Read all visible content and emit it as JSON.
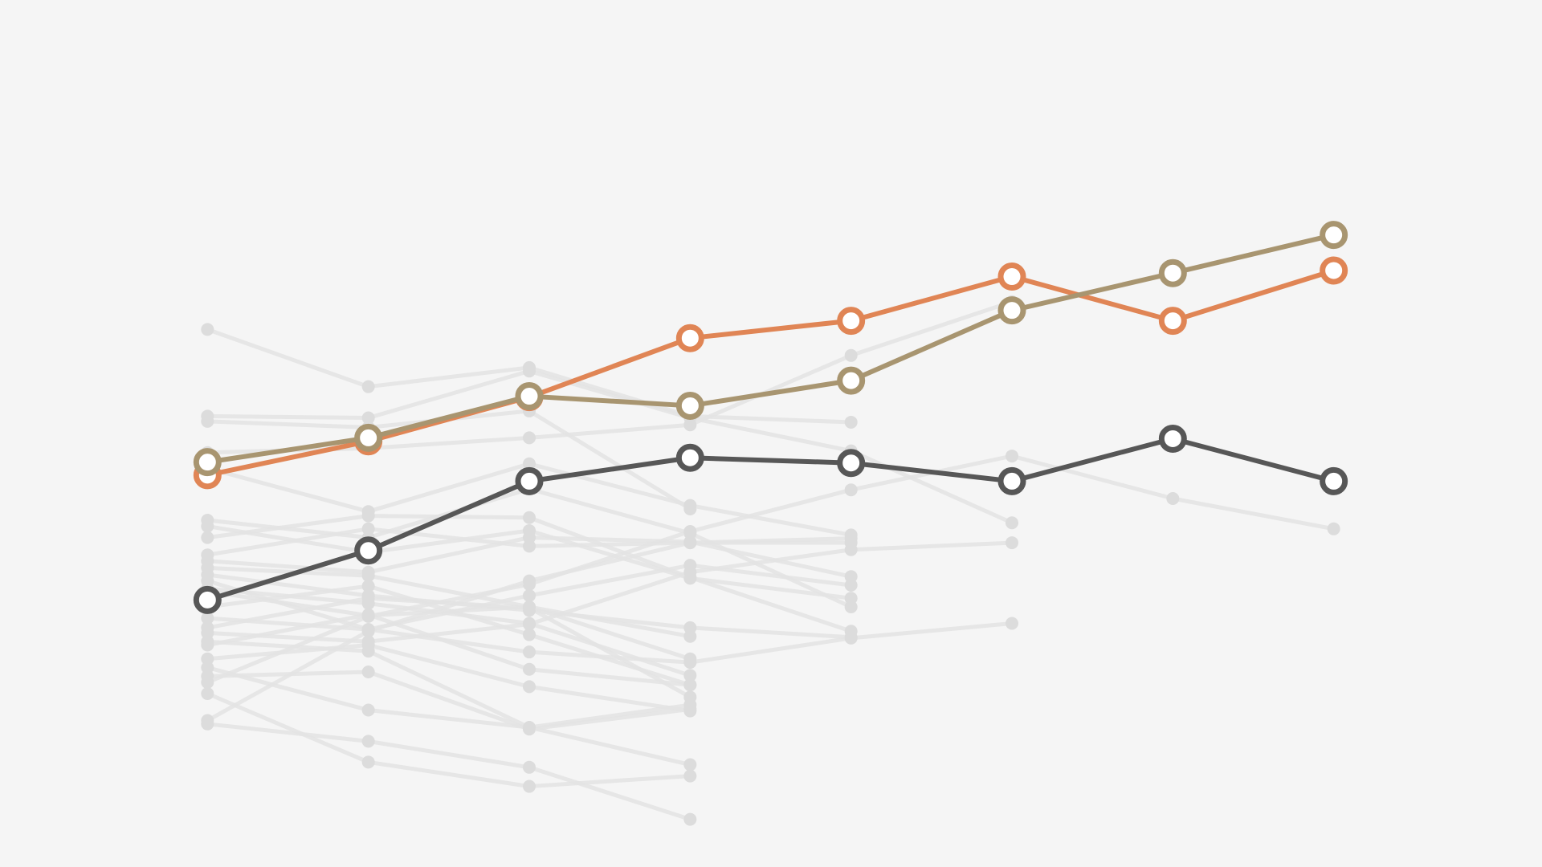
{
  "colors": {
    "background": "#f5f5f5",
    "context_line": "#e3e3e3",
    "context_point": "#dcdcdc",
    "marker_fill": "#ffffff"
  },
  "chart_data": {
    "type": "line",
    "title": "",
    "xlabel": "",
    "ylabel": "",
    "grid": false,
    "legend": "none",
    "x": [
      1,
      2,
      3,
      4,
      5,
      6,
      7,
      8
    ],
    "xlim": [
      0,
      9
    ],
    "ylim": [
      0,
      100
    ],
    "highlighted_series": [
      {
        "color": "#e08555",
        "values": [
          45.2,
          49.1,
          54.2,
          61.0,
          63.0,
          68.1,
          63.0,
          68.8
        ]
      },
      {
        "color": "#a89570",
        "values": [
          46.7,
          49.5,
          54.3,
          53.2,
          56.1,
          64.2,
          68.5,
          72.9
        ]
      },
      {
        "color": "#575757",
        "values": [
          30.8,
          36.5,
          44.5,
          47.2,
          46.6,
          44.5,
          49.4,
          44.5
        ]
      }
    ],
    "context_series": [
      {
        "values": [
          62.0,
          55.4,
          57.6,
          52.0,
          51.3
        ]
      },
      {
        "values": [
          52.0,
          51.8,
          57.2,
          51.8,
          48.0,
          39.7
        ]
      },
      {
        "values": [
          51.4,
          50.7,
          52.6,
          41.3
        ]
      },
      {
        "values": [
          46.0,
          41.0,
          46.5,
          41.7,
          38.3
        ]
      },
      {
        "values": [
          47.8,
          48.3,
          49.5,
          51.0,
          59.0,
          65.2
        ]
      },
      {
        "values": [
          40.0,
          38.0,
          43.6,
          38.5,
          30.0
        ]
      },
      {
        "values": [
          36.0,
          39.0,
          37.0,
          37.4,
          37.9
        ]
      },
      {
        "values": [
          38.0,
          40.5,
          40.3,
          33.4,
          27.2
        ]
      },
      {
        "values": [
          39.3,
          36.3,
          38.8,
          33.3,
          31.0
        ]
      },
      {
        "values": [
          35.3,
          34.0,
          38.0,
          37.5,
          33.5
        ]
      },
      {
        "values": [
          33.0,
          27.4,
          31.3,
          34.8,
          32.5
        ]
      },
      {
        "values": [
          32.1,
          30.4,
          28.1,
          22.1
        ]
      },
      {
        "values": [
          31.8,
          29.0,
          30.0,
          24.0
        ]
      },
      {
        "values": [
          30.0,
          32.4,
          26.8,
          21.0
        ]
      },
      {
        "values": [
          27.6,
          31.0,
          29.9,
          19.6
        ]
      },
      {
        "values": [
          25.6,
          29.1,
          22.8,
          21.0
        ]
      },
      {
        "values": [
          24.0,
          25.6,
          20.8,
          18.0
        ]
      },
      {
        "values": [
          23.0,
          18.1,
          16.1,
          18.7
        ]
      },
      {
        "values": [
          22.0,
          22.5,
          15.9,
          18.2
        ]
      },
      {
        "values": [
          20.0,
          12.1,
          9.3,
          10.5
        ]
      },
      {
        "values": [
          16.5,
          14.5,
          11.5,
          5.5
        ]
      },
      {
        "values": [
          21.3,
          28.9,
          32.6,
          38.7,
          43.5,
          47.4,
          42.5,
          39.0
        ]
      },
      {
        "values": [
          27.0,
          26.0,
          28.0,
          34.0,
          36.6,
          37.4
        ]
      },
      {
        "values": [
          16.9,
          27.2,
          33.0,
          37.4,
          37.4
        ]
      },
      {
        "values": [
          28.7,
          27.4,
          24.8,
          23.6,
          26.4,
          28.1
        ]
      },
      {
        "values": [
          26.0,
          24.9,
          16.1,
          11.8
        ]
      },
      {
        "values": [
          33.7,
          31.3,
          29.6,
          27.6,
          26.5
        ]
      },
      {
        "values": [
          34.5,
          33.6,
          30.0,
          26.6
        ]
      }
    ]
  }
}
